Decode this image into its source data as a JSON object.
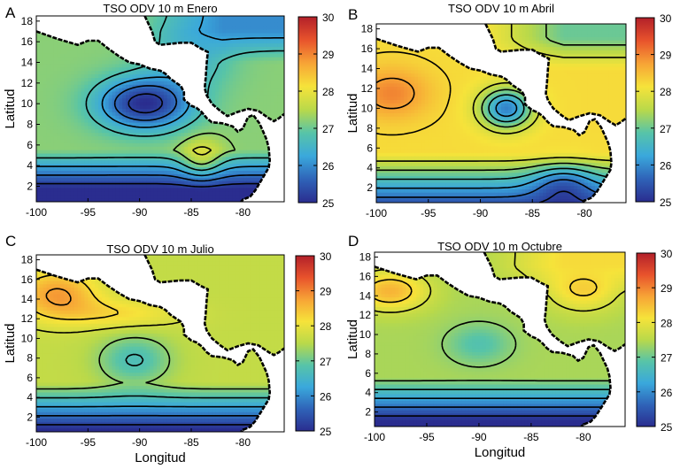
{
  "chart_data": [
    {
      "type": "heatmap",
      "panel_label": "A",
      "title": "TSO ODV 10 m Enero",
      "xlabel": "",
      "ylabel": "Latitud",
      "xlim": [
        -100,
        -76
      ],
      "ylim": [
        0.5,
        18.5
      ],
      "x_ticks": [
        -100,
        -95,
        -90,
        -85,
        -80
      ],
      "y_ticks": [
        2,
        4,
        6,
        8,
        10,
        12,
        14,
        16,
        18
      ],
      "colorbar": {
        "min": 25,
        "max": 30,
        "ticks": [
          25,
          26,
          27,
          28,
          29,
          30
        ]
      },
      "background_c": 27.2,
      "features": [
        {
          "kind": "low",
          "x": -89.5,
          "y": 10.0,
          "amp": -2.2,
          "sx": 4.5,
          "sy": 2.5
        },
        {
          "kind": "high",
          "x": -84.0,
          "y": 4.5,
          "amp": 0.9,
          "sx": 2.0,
          "sy": 2.0
        },
        {
          "kind": "low",
          "x": -85.0,
          "y": 14.5,
          "amp": -0.7,
          "sx": 4.0,
          "sy": 3.0
        }
      ],
      "north_c": 26.0,
      "south_gradient": -0.6
    },
    {
      "type": "heatmap",
      "panel_label": "B",
      "title": "TSO ODV 10 m Abril",
      "xlabel": "",
      "ylabel": "Latitud",
      "xlim": [
        -100,
        -76
      ],
      "ylim": [
        0.5,
        18.5
      ],
      "x_ticks": [
        -100,
        -95,
        -90,
        -85,
        -80
      ],
      "y_ticks": [
        2,
        4,
        6,
        8,
        10,
        12,
        14,
        16,
        18
      ],
      "colorbar": {
        "min": 25,
        "max": 30,
        "ticks": [
          25,
          26,
          27,
          28,
          29,
          30
        ]
      },
      "background_c": 28.2,
      "features": [
        {
          "kind": "high",
          "x": -98.5,
          "y": 11.5,
          "amp": 0.8,
          "sx": 3.5,
          "sy": 2.5
        },
        {
          "kind": "low",
          "x": -87.5,
          "y": 10.0,
          "amp": -2.3,
          "sx": 2.5,
          "sy": 2.0
        },
        {
          "kind": "low",
          "x": -82.0,
          "y": 2.5,
          "amp": -1.0,
          "sx": 3.0,
          "sy": 2.0
        }
      ],
      "north_c": 27.0,
      "south_gradient": -0.55
    },
    {
      "type": "heatmap",
      "panel_label": "C",
      "title": "TSO ODV 10 m Julio",
      "xlabel": "Longitud",
      "ylabel": "Latitud",
      "xlim": [
        -100,
        -76
      ],
      "ylim": [
        0.5,
        18.5
      ],
      "x_ticks": [
        -100,
        -95,
        -90,
        -85,
        -80
      ],
      "y_ticks": [
        2,
        4,
        6,
        8,
        10,
        12,
        14,
        16,
        18
      ],
      "colorbar": {
        "min": 25,
        "max": 30,
        "ticks": [
          25,
          26,
          27,
          28,
          29,
          30
        ]
      },
      "background_c": 27.6,
      "features": [
        {
          "kind": "low",
          "x": -90.5,
          "y": 7.8,
          "amp": -0.9,
          "sx": 3.5,
          "sy": 2.5
        },
        {
          "kind": "high",
          "x": -98.0,
          "y": 14.5,
          "amp": 1.2,
          "sx": 4.0,
          "sy": 2.5
        },
        {
          "kind": "high",
          "x": -92.0,
          "y": 12.5,
          "amp": 0.6,
          "sx": 6.0,
          "sy": 1.5
        }
      ],
      "north_c": 27.6,
      "south_gradient": -0.55
    },
    {
      "type": "heatmap",
      "panel_label": "D",
      "title": "TSO ODV 10 m Octubre",
      "xlabel": "Longitud",
      "ylabel": "Latitud",
      "xlim": [
        -100,
        -76
      ],
      "ylim": [
        0.5,
        18.5
      ],
      "x_ticks": [
        -100,
        -95,
        -90,
        -85,
        -80
      ],
      "y_ticks": [
        2,
        4,
        6,
        8,
        10,
        12,
        14,
        16,
        18
      ],
      "colorbar": {
        "min": 25,
        "max": 30,
        "ticks": [
          25,
          26,
          27,
          28,
          29,
          30
        ]
      },
      "background_c": 27.4,
      "features": [
        {
          "kind": "low",
          "x": -90.0,
          "y": 9.0,
          "amp": -0.6,
          "sx": 3.0,
          "sy": 2.0
        },
        {
          "kind": "high",
          "x": -98.5,
          "y": 14.5,
          "amp": 1.2,
          "sx": 3.5,
          "sy": 2.0
        },
        {
          "kind": "high",
          "x": -80.0,
          "y": 15.0,
          "amp": 1.0,
          "sx": 3.5,
          "sy": 2.5
        }
      ],
      "north_c": 28.2,
      "south_gradient": -0.55
    }
  ],
  "colors": {
    "cmap": [
      "#2a2d8f",
      "#2f63b8",
      "#3aa8dc",
      "#57c4a8",
      "#b9d94a",
      "#f6e33a",
      "#f7a436",
      "#e8532c",
      "#b3202a"
    ],
    "contour": "#000000",
    "land": "#ffffff",
    "coast": "#000000"
  },
  "coastline_lonlat": [
    [
      -100,
      17.0
    ],
    [
      -98,
      16.3
    ],
    [
      -96,
      15.7
    ],
    [
      -95,
      16.1
    ],
    [
      -94,
      16.1
    ],
    [
      -93,
      15.3
    ],
    [
      -92,
      14.6
    ],
    [
      -91,
      14.0
    ],
    [
      -90,
      13.8
    ],
    [
      -89,
      13.4
    ],
    [
      -88,
      13.2
    ],
    [
      -87.5,
      12.9
    ],
    [
      -87,
      12.4
    ],
    [
      -86,
      11.7
    ],
    [
      -85.7,
      11.1
    ],
    [
      -85.7,
      10.4
    ],
    [
      -85,
      9.8
    ],
    [
      -84.5,
      9.6
    ],
    [
      -84,
      9.2
    ],
    [
      -83.5,
      8.6
    ],
    [
      -83,
      8.2
    ],
    [
      -82,
      8.1
    ],
    [
      -81,
      7.8
    ],
    [
      -80.5,
      7.3
    ],
    [
      -80,
      7.6
    ],
    [
      -79.5,
      8.7
    ],
    [
      -79,
      8.9
    ],
    [
      -78.4,
      8.1
    ],
    [
      -78,
      7.2
    ],
    [
      -77.7,
      6.5
    ],
    [
      -77.5,
      5.7
    ],
    [
      -77.4,
      4.5
    ],
    [
      -77.5,
      3.8
    ],
    [
      -78.2,
      2.6
    ],
    [
      -78.8,
      1.6
    ],
    [
      -79.3,
      1.0
    ],
    [
      -80.0,
      0.7
    ],
    [
      -80.2,
      0.5
    ]
  ],
  "caribbean_coast_lonlat": [
    [
      -89.5,
      18.5
    ],
    [
      -88.8,
      17.0
    ],
    [
      -88.5,
      16.0
    ],
    [
      -88.0,
      15.7
    ],
    [
      -87.0,
      15.8
    ],
    [
      -86.0,
      15.9
    ],
    [
      -85.0,
      15.9
    ],
    [
      -84.0,
      15.3
    ],
    [
      -83.4,
      15.0
    ],
    [
      -83.5,
      14.0
    ],
    [
      -83.6,
      12.5
    ],
    [
      -83.7,
      11.5
    ],
    [
      -83.5,
      10.8
    ],
    [
      -83.0,
      10.0
    ],
    [
      -82.2,
      9.3
    ],
    [
      -81.5,
      8.8
    ],
    [
      -80.5,
      9.2
    ],
    [
      -79.5,
      9.5
    ],
    [
      -78.5,
      9.3
    ],
    [
      -77.5,
      8.6
    ],
    [
      -77.0,
      8.3
    ],
    [
      -76.5,
      8.6
    ],
    [
      -76.0,
      9.0
    ]
  ],
  "land_polygon_lonlat": [
    [
      -100,
      18.5
    ],
    [
      -100,
      17.0
    ],
    [
      -98,
      16.3
    ],
    [
      -96,
      15.7
    ],
    [
      -95,
      16.1
    ],
    [
      -94,
      16.1
    ],
    [
      -93,
      15.3
    ],
    [
      -92,
      14.6
    ],
    [
      -91,
      14.0
    ],
    [
      -90,
      13.8
    ],
    [
      -89,
      13.4
    ],
    [
      -88,
      13.2
    ],
    [
      -87.5,
      12.9
    ],
    [
      -87,
      12.4
    ],
    [
      -86,
      11.7
    ],
    [
      -85.7,
      11.1
    ],
    [
      -85.7,
      10.4
    ],
    [
      -85,
      9.8
    ],
    [
      -84.5,
      9.6
    ],
    [
      -84,
      9.2
    ],
    [
      -83.5,
      8.6
    ],
    [
      -83,
      8.2
    ],
    [
      -82,
      8.1
    ],
    [
      -81,
      7.8
    ],
    [
      -80.5,
      7.3
    ],
    [
      -80,
      7.6
    ],
    [
      -79.5,
      8.7
    ],
    [
      -79,
      8.9
    ],
    [
      -78.4,
      8.1
    ],
    [
      -78,
      7.2
    ],
    [
      -77.7,
      6.5
    ],
    [
      -77.5,
      5.7
    ],
    [
      -77.4,
      4.5
    ],
    [
      -77.5,
      3.8
    ],
    [
      -78.2,
      2.6
    ],
    [
      -78.8,
      1.6
    ],
    [
      -79.3,
      1.0
    ],
    [
      -80.0,
      0.7
    ],
    [
      -80.2,
      0.5
    ],
    [
      -76,
      0.5
    ],
    [
      -76,
      9.0
    ],
    [
      -76.5,
      8.6
    ],
    [
      -77.0,
      8.3
    ],
    [
      -77.5,
      8.6
    ],
    [
      -78.5,
      9.3
    ],
    [
      -79.5,
      9.5
    ],
    [
      -80.5,
      9.2
    ],
    [
      -81.5,
      8.8
    ],
    [
      -82.2,
      9.3
    ],
    [
      -83.0,
      10.0
    ],
    [
      -83.5,
      10.8
    ],
    [
      -83.7,
      11.5
    ],
    [
      -83.6,
      12.5
    ],
    [
      -83.5,
      14.0
    ],
    [
      -83.4,
      15.0
    ],
    [
      -84.0,
      15.3
    ],
    [
      -85.0,
      15.9
    ],
    [
      -86.0,
      15.9
    ],
    [
      -87.0,
      15.8
    ],
    [
      -88.0,
      15.7
    ],
    [
      -88.5,
      16.0
    ],
    [
      -88.8,
      17.0
    ],
    [
      -89.5,
      18.5
    ]
  ]
}
